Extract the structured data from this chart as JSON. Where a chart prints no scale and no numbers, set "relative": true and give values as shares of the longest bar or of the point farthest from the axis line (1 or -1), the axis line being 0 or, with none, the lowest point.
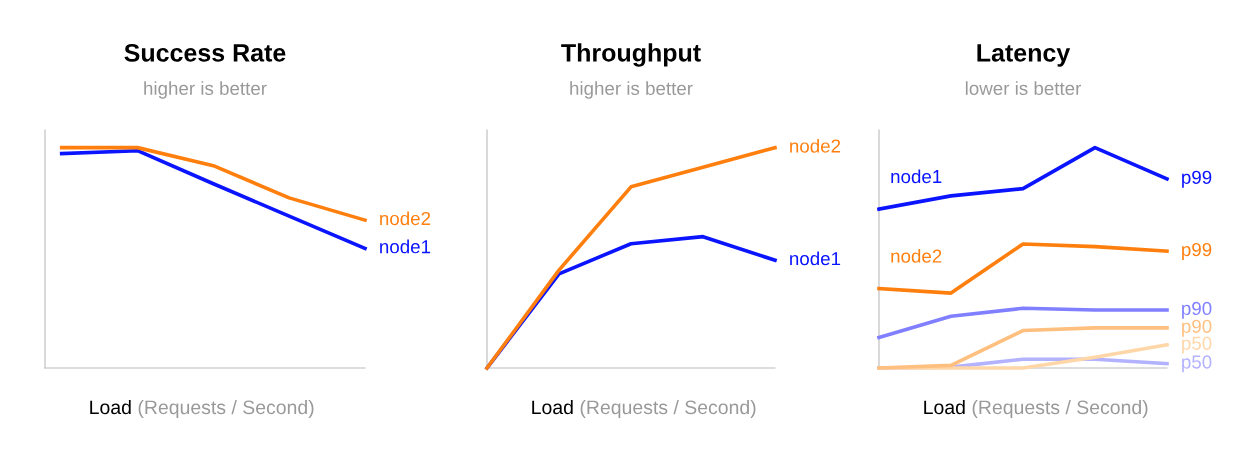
{
  "chart_data": [
    {
      "type": "line",
      "title": "Success Rate",
      "subtitle": "higher is better",
      "xlabel": "Load (Requests / Second)",
      "relative": true,
      "grid": false,
      "legend": false,
      "categories": [
        null,
        null,
        null,
        null,
        null
      ],
      "series": [
        {
          "name": "node2",
          "color": "#ff7f0e",
          "values": [
            1,
            1,
            0.918,
            0.772,
            0.671
          ]
        },
        {
          "name": "node1",
          "color": "#0a14ff",
          "values": [
            0.973,
            0.986,
            0.836,
            0.689,
            0.543
          ]
        }
      ]
    },
    {
      "type": "line",
      "title": "Throughput",
      "subtitle": "higher is better",
      "xlabel": "Load (Requests / Second)",
      "relative": true,
      "grid": false,
      "legend": false,
      "categories": [
        null,
        null,
        null,
        null,
        null
      ],
      "series": [
        {
          "name": "node2",
          "color": "#ff7f0e",
          "values": [
            0,
            0.444,
            0.822,
            0.911,
            1
          ]
        },
        {
          "name": "node1",
          "color": "#0a14ff",
          "values": [
            0,
            0.427,
            0.564,
            0.596,
            0.489
          ]
        }
      ]
    },
    {
      "type": "line",
      "title": "Latency",
      "subtitle": "lower is better",
      "xlabel": "Load (Requests / Second)",
      "relative": true,
      "grid": false,
      "legend": false,
      "categories": [
        null,
        null,
        null,
        null,
        null
      ],
      "annotations": [
        "node1",
        "node2"
      ],
      "series": [
        {
          "name": "p99",
          "color": "#0a14ff",
          "values": [
            0.721,
            0.781,
            0.814,
            1,
            0.858
          ]
        },
        {
          "name": "p99",
          "color": "#ff7f0e",
          "values": [
            0.36,
            0.34,
            0.563,
            0.551,
            0.53
          ]
        },
        {
          "name": "p90",
          "color": "#7f7fff",
          "values": [
            0.138,
            0.235,
            0.271,
            0.263,
            0.263
          ]
        },
        {
          "name": "p90",
          "color": "#ffbf7f",
          "values": [
            0,
            0.012,
            0.17,
            0.182,
            0.182
          ]
        },
        {
          "name": "p50",
          "color": "#ffd6a8",
          "values": [
            0,
            0,
            0,
            0.049,
            0.105
          ]
        },
        {
          "name": "p50",
          "color": "#b2b2ff",
          "values": [
            0,
            0.004,
            0.04,
            0.04,
            0.02
          ]
        }
      ]
    }
  ]
}
